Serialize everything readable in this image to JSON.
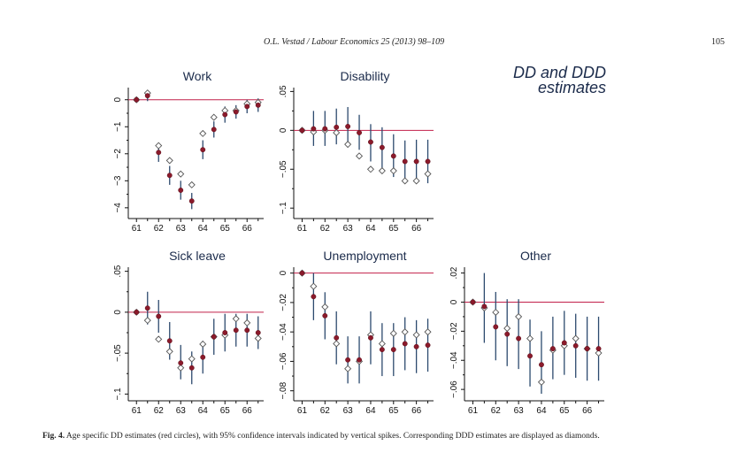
{
  "header": {
    "journal": "O.L. Vestad / Labour Economics 25 (2013) 98–109",
    "page": "105"
  },
  "figure_title": {
    "line1": "DD and DDD",
    "line2": "estimates"
  },
  "caption": {
    "label": "Fig. 4.",
    "text": " Age specific DD estimates (red circles), with 95% confidence intervals indicated by vertical spikes. Corresponding DDD estimates are displayed as diamonds."
  },
  "colors": {
    "dd_marker": "#8b1a2b",
    "ddd_marker_stroke": "#555555",
    "ci_spike": "#2c4a6e",
    "zero_line": "#c2204a",
    "axis": "#111111"
  },
  "chart_data": [
    {
      "type": "scatter",
      "title": "Work",
      "x_ticks": [
        "61",
        "62",
        "63",
        "64",
        "65",
        "66"
      ],
      "y_ticks": [
        "0",
        "−1",
        "−2",
        "−3",
        "−4"
      ],
      "y_tick_values": [
        0,
        -1,
        -2,
        -3,
        -4
      ],
      "xlim": [
        60.75,
        66.75
      ],
      "ylim": [
        -4.3,
        0.45
      ],
      "zero_line": 0,
      "series": [
        {
          "name": "DD",
          "x": [
            61,
            61.5,
            62,
            62.5,
            63,
            63.5,
            64,
            64.5,
            65,
            65.5,
            66,
            66.5
          ],
          "y": [
            0,
            0.15,
            -1.95,
            -2.8,
            -3.35,
            -3.75,
            -1.85,
            -1.1,
            -0.55,
            -0.45,
            -0.25,
            -0.2
          ],
          "ci_low": [
            0,
            -0.05,
            -2.3,
            -3.15,
            -3.7,
            -4.05,
            -2.2,
            -1.4,
            -0.85,
            -0.7,
            -0.5,
            -0.45
          ],
          "ci_high": [
            0,
            0.35,
            -1.6,
            -2.45,
            -3.0,
            -3.45,
            -1.5,
            -0.8,
            -0.25,
            -0.2,
            0,
            0.05
          ]
        },
        {
          "name": "DDD",
          "x": [
            61,
            61.5,
            62,
            62.5,
            63,
            63.5,
            64,
            64.5,
            65,
            65.5,
            66,
            66.5
          ],
          "y": [
            0,
            0.25,
            -1.7,
            -2.25,
            -2.75,
            -3.15,
            -1.25,
            -0.65,
            -0.4,
            -0.4,
            -0.15,
            -0.1
          ]
        }
      ]
    },
    {
      "type": "scatter",
      "title": "Disability",
      "x_ticks": [
        "61",
        "62",
        "63",
        "64",
        "65",
        "66"
      ],
      "y_ticks": [
        ".05",
        "0",
        "−.05",
        "−.1"
      ],
      "y_tick_values": [
        0.05,
        0,
        -0.05,
        -0.1
      ],
      "xlim": [
        60.75,
        66.75
      ],
      "ylim": [
        -0.11,
        0.055
      ],
      "zero_line": 0,
      "series": [
        {
          "name": "DD",
          "x": [
            61,
            61.5,
            62,
            62.5,
            63,
            63.5,
            64,
            64.5,
            65,
            65.5,
            66,
            66.5
          ],
          "y": [
            0,
            0.002,
            0.002,
            0.004,
            0.005,
            -0.003,
            -0.015,
            -0.022,
            -0.033,
            -0.04,
            -0.04,
            -0.04
          ],
          "ci_low": [
            0,
            -0.02,
            -0.02,
            -0.018,
            -0.018,
            -0.025,
            -0.04,
            -0.048,
            -0.06,
            -0.065,
            -0.068,
            -0.068
          ],
          "ci_high": [
            0,
            0.025,
            0.025,
            0.028,
            0.03,
            0.02,
            0.008,
            0.004,
            -0.005,
            -0.013,
            -0.012,
            -0.012
          ]
        },
        {
          "name": "DDD",
          "x": [
            61,
            61.5,
            62,
            62.5,
            63,
            63.5,
            64,
            64.5,
            65,
            65.5,
            66,
            66.5
          ],
          "y": [
            0,
            -0.002,
            0,
            -0.003,
            -0.018,
            -0.033,
            -0.05,
            -0.052,
            -0.052,
            -0.065,
            -0.065,
            -0.056
          ]
        }
      ]
    },
    {
      "type": "scatter",
      "title": "Sick leave",
      "x_ticks": [
        "61",
        "62",
        "63",
        "64",
        "65",
        "66"
      ],
      "y_ticks": [
        ".05",
        "0",
        "−.05",
        "−.1"
      ],
      "y_tick_values": [
        0.05,
        0,
        -0.05,
        -0.1
      ],
      "xlim": [
        60.75,
        66.75
      ],
      "ylim": [
        -0.105,
        0.055
      ],
      "zero_line": 0,
      "series": [
        {
          "name": "DD",
          "x": [
            61,
            61.5,
            62,
            62.5,
            63,
            63.5,
            64,
            64.5,
            65,
            65.5,
            66,
            66.5
          ],
          "y": [
            0,
            0.005,
            -0.005,
            -0.035,
            -0.062,
            -0.068,
            -0.055,
            -0.03,
            -0.025,
            -0.022,
            -0.022,
            -0.025
          ],
          "ci_low": [
            0,
            -0.015,
            -0.025,
            -0.058,
            -0.082,
            -0.088,
            -0.075,
            -0.052,
            -0.048,
            -0.042,
            -0.042,
            -0.045
          ],
          "ci_high": [
            0,
            0.025,
            0.015,
            -0.012,
            -0.04,
            -0.048,
            -0.035,
            -0.008,
            -0.002,
            -0.002,
            -0.002,
            -0.005
          ]
        },
        {
          "name": "DDD",
          "x": [
            61,
            61.5,
            62,
            62.5,
            63,
            63.5,
            64,
            64.5,
            65,
            65.5,
            66,
            66.5
          ],
          "y": [
            0,
            -0.01,
            -0.033,
            -0.048,
            -0.068,
            -0.057,
            -0.039,
            -0.03,
            -0.028,
            -0.008,
            -0.013,
            -0.032
          ]
        }
      ]
    },
    {
      "type": "scatter",
      "title": "Unemployment",
      "x_ticks": [
        "61",
        "62",
        "63",
        "64",
        "65",
        "66"
      ],
      "y_ticks": [
        "0",
        "−.02",
        "−.04",
        "−.06",
        "−.08"
      ],
      "y_tick_values": [
        0,
        -0.02,
        -0.04,
        -0.06,
        -0.08
      ],
      "xlim": [
        60.75,
        66.75
      ],
      "ylim": [
        -0.085,
        0.004
      ],
      "zero_line": 0,
      "series": [
        {
          "name": "DD",
          "x": [
            61,
            61.5,
            62,
            62.5,
            63,
            63.5,
            64,
            64.5,
            65,
            65.5,
            66,
            66.5
          ],
          "y": [
            0,
            -0.016,
            -0.029,
            -0.044,
            -0.059,
            -0.059,
            -0.044,
            -0.052,
            -0.052,
            -0.048,
            -0.05,
            -0.049
          ],
          "ci_low": [
            0,
            -0.032,
            -0.045,
            -0.062,
            -0.075,
            -0.075,
            -0.062,
            -0.07,
            -0.07,
            -0.066,
            -0.068,
            -0.067
          ],
          "ci_high": [
            0,
            0,
            -0.013,
            -0.026,
            -0.043,
            -0.043,
            -0.026,
            -0.034,
            -0.034,
            -0.03,
            -0.032,
            -0.031
          ]
        },
        {
          "name": "DDD",
          "x": [
            61,
            61.5,
            62,
            62.5,
            63,
            63.5,
            64,
            64.5,
            65,
            65.5,
            66,
            66.5
          ],
          "y": [
            0,
            -0.009,
            -0.023,
            -0.048,
            -0.065,
            -0.06,
            -0.042,
            -0.048,
            -0.041,
            -0.04,
            -0.042,
            -0.04
          ]
        }
      ]
    },
    {
      "type": "scatter",
      "title": "Other",
      "x_ticks": [
        "61",
        "62",
        "63",
        "64",
        "65",
        "66"
      ],
      "y_ticks": [
        ".02",
        "0",
        "−.02",
        "−.04",
        "−.06"
      ],
      "y_tick_values": [
        0.02,
        0,
        -0.02,
        -0.04,
        -0.06
      ],
      "xlim": [
        60.75,
        66.75
      ],
      "ylim": [
        -0.066,
        0.024
      ],
      "zero_line": 0,
      "series": [
        {
          "name": "DD",
          "x": [
            61,
            61.5,
            62,
            62.5,
            63,
            63.5,
            64,
            64.5,
            65,
            65.5,
            66,
            66.5
          ],
          "y": [
            0,
            -0.003,
            -0.017,
            -0.022,
            -0.025,
            -0.037,
            -0.043,
            -0.032,
            -0.028,
            -0.03,
            -0.032,
            -0.032
          ],
          "ci_low": [
            0,
            -0.028,
            -0.04,
            -0.044,
            -0.046,
            -0.058,
            -0.063,
            -0.053,
            -0.05,
            -0.052,
            -0.054,
            -0.054
          ],
          "ci_high": [
            0,
            0.02,
            0.007,
            0.002,
            0.002,
            -0.012,
            -0.02,
            -0.01,
            -0.006,
            -0.008,
            -0.01,
            -0.01
          ]
        },
        {
          "name": "DDD",
          "x": [
            61,
            61.5,
            62,
            62.5,
            63,
            63.5,
            64,
            64.5,
            65,
            65.5,
            66,
            66.5
          ],
          "y": [
            0,
            -0.004,
            -0.007,
            -0.018,
            -0.01,
            -0.025,
            -0.055,
            -0.033,
            -0.03,
            -0.025,
            -0.032,
            -0.035
          ]
        }
      ]
    }
  ]
}
